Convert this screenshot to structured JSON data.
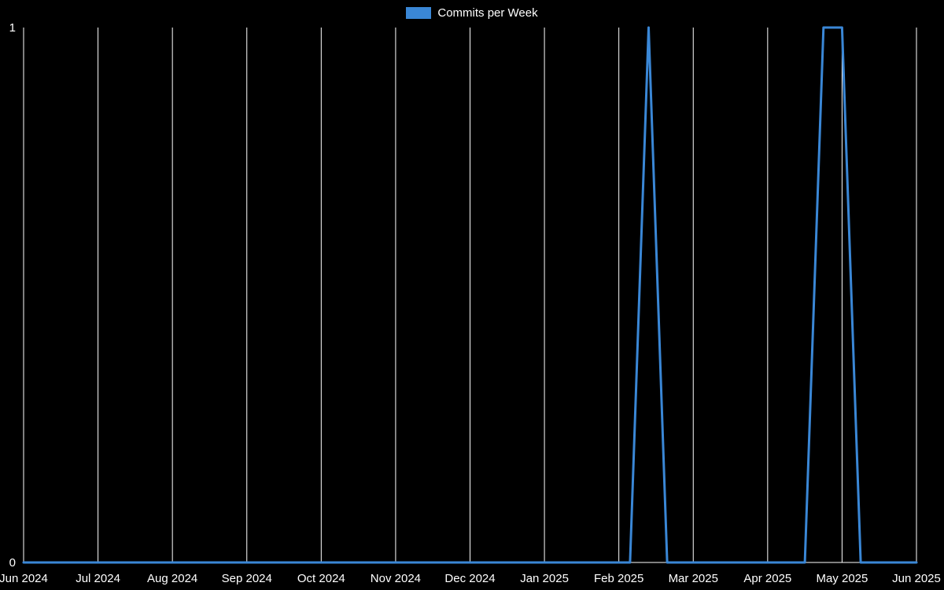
{
  "chart_data": {
    "type": "line",
    "title": "",
    "xlabel": "",
    "ylabel": "",
    "legend": {
      "position": "top-center",
      "entries": [
        "Commits per Week"
      ]
    },
    "background_color": "#000000",
    "text_color": "#ffffff",
    "axis_color": "#ffffff",
    "grid": {
      "vertical": true,
      "horizontal": false,
      "color": "#ffffff"
    },
    "x_tick_labels": [
      "Jun 2024",
      "Jul 2024",
      "Aug 2024",
      "Sep 2024",
      "Oct 2024",
      "Nov 2024",
      "Dec 2024",
      "Jan 2025",
      "Feb 2025",
      "Mar 2025",
      "Apr 2025",
      "May 2025",
      "Jun 2025"
    ],
    "x_range": [
      0,
      12
    ],
    "ylim": [
      0,
      1
    ],
    "y_ticks": [
      "0",
      "1"
    ],
    "series": [
      {
        "name": "Commits per Week",
        "color": "#3a87d6",
        "points": [
          {
            "x": 0.0,
            "y": 0
          },
          {
            "x": 8.15,
            "y": 0
          },
          {
            "x": 8.4,
            "y": 1
          },
          {
            "x": 8.65,
            "y": 0
          },
          {
            "x": 10.5,
            "y": 0
          },
          {
            "x": 10.75,
            "y": 1
          },
          {
            "x": 11.0,
            "y": 1
          },
          {
            "x": 11.25,
            "y": 0
          },
          {
            "x": 12.0,
            "y": 0
          }
        ]
      }
    ]
  }
}
